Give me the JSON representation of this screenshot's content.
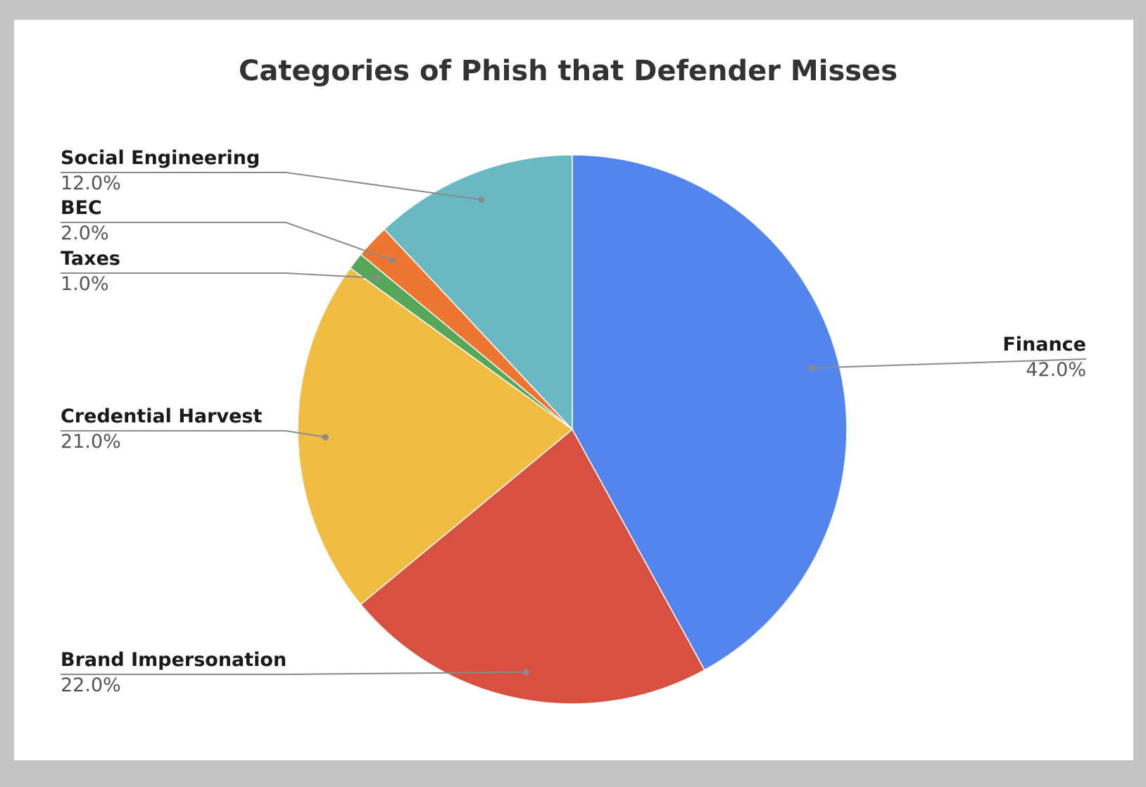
{
  "chart_data": {
    "type": "pie",
    "title": "Categories of Phish that Defender Misses",
    "slices": [
      {
        "label": "Finance",
        "value": 42.0,
        "display": "42.0%",
        "color": "#5485ec"
      },
      {
        "label": "Brand Impersonation",
        "value": 22.0,
        "display": "22.0%",
        "color": "#d85140"
      },
      {
        "label": "Credential Harvest",
        "value": 21.0,
        "display": "21.0%",
        "color": "#f0bd42"
      },
      {
        "label": "Taxes",
        "value": 1.0,
        "display": "1.0%",
        "color": "#57a75b"
      },
      {
        "label": "BEC",
        "value": 2.0,
        "display": "2.0%",
        "color": "#ee7631"
      },
      {
        "label": "Social Engineering",
        "value": 12.0,
        "display": "12.0%",
        "color": "#68b9c3"
      }
    ],
    "start_angle": "12 o'clock",
    "direction": "clockwise",
    "legend": "none"
  }
}
